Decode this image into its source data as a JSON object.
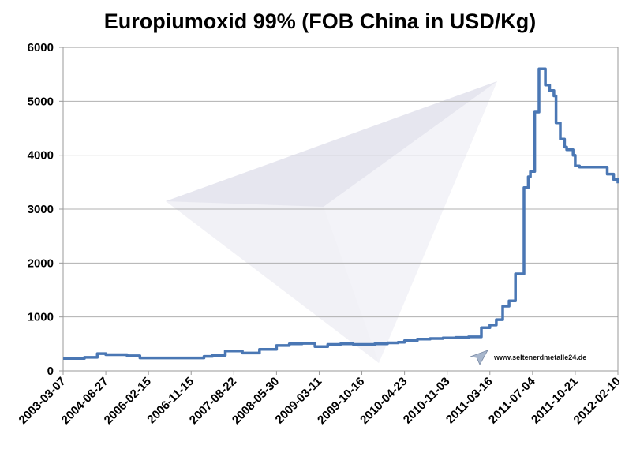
{
  "chart_data": {
    "type": "line",
    "title": "Europiumoxid 99% (FOB China in USD/Kg)",
    "xlabel": "",
    "ylabel": "",
    "ylim": [
      0,
      6000
    ],
    "yticks": [
      0,
      1000,
      2000,
      3000,
      4000,
      5000,
      6000
    ],
    "xtick_labels": [
      "2003-03-07",
      "2004-08-27",
      "2006-02-15",
      "2006-11-15",
      "2007-08-22",
      "2008-05-30",
      "2009-03-11",
      "2009-10-16",
      "2010-04-23",
      "2010-11-03",
      "2011-03-16",
      "2011-07-04",
      "2011-10-21",
      "2012-02-10"
    ],
    "grid": "horizontal",
    "legend": "none",
    "series_color": "#4a77b4",
    "series": [
      {
        "x": [
          0,
          0.25,
          0.5,
          0.8,
          1.0,
          1.25,
          1.5,
          1.8,
          2.0,
          2.5,
          3.0,
          3.3,
          3.5,
          3.8,
          4.2,
          4.6,
          5.0,
          5.3,
          5.6,
          5.9,
          6.2,
          6.5,
          6.8,
          7.0,
          7.3,
          7.6,
          7.85,
          8.0,
          8.3,
          8.6,
          8.9,
          9.2,
          9.5,
          9.8,
          10.0,
          10.15,
          10.3,
          10.45,
          10.6,
          10.8,
          10.9,
          10.95,
          11.05,
          11.15,
          11.25,
          11.3,
          11.4,
          11.5,
          11.55,
          11.65,
          11.75,
          11.8,
          11.9,
          11.95,
          12.0,
          12.1,
          12.2,
          12.35,
          12.5,
          12.75,
          12.9,
          13.0
        ],
        "y": [
          230,
          230,
          250,
          320,
          300,
          300,
          280,
          240,
          240,
          240,
          240,
          270,
          290,
          370,
          330,
          400,
          470,
          500,
          510,
          450,
          490,
          500,
          490,
          490,
          500,
          520,
          530,
          560,
          590,
          600,
          610,
          620,
          630,
          800,
          850,
          950,
          1200,
          1300,
          1800,
          3400,
          3600,
          3700,
          4800,
          5600,
          5600,
          5300,
          5200,
          5100,
          4600,
          4300,
          4150,
          4100,
          4100,
          4000,
          3800,
          3780,
          3780,
          3780,
          3780,
          3650,
          3550,
          3480
        ]
      }
    ],
    "watermark_text": "www.seltenerdmetalle24.de"
  }
}
